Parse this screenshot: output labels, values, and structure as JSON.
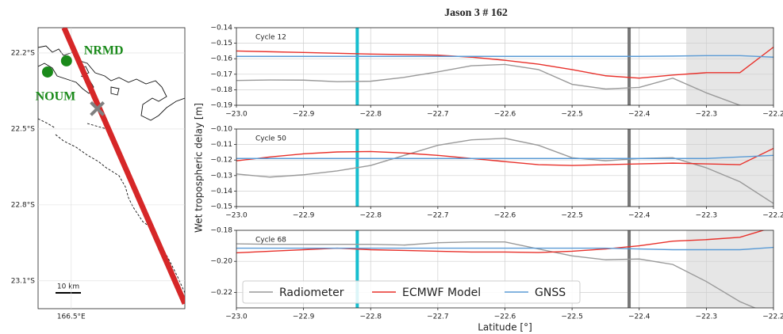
{
  "title": "Jason 3 # 162",
  "map": {
    "type": "map",
    "xlim": [
      166.36,
      166.98
    ],
    "ylim": [
      -23.21,
      -22.1
    ],
    "yticks": [
      {
        "value": -22.2,
        "label": "22.2°S"
      },
      {
        "value": -22.5,
        "label": "22.5°S"
      },
      {
        "value": -22.8,
        "label": "22.8°S"
      },
      {
        "value": -23.1,
        "label": "23.1°S"
      }
    ],
    "xticks": [
      {
        "value": 166.5,
        "label": "166.5°E"
      }
    ],
    "track": {
      "lon": [
        166.47,
        166.98
      ],
      "lat": [
        -22.1,
        -23.19
      ],
      "color": "#d62728"
    },
    "stations": [
      {
        "label": "NRMD",
        "lon": 166.48,
        "lat": -22.231,
        "color": "#1a8a1a"
      },
      {
        "label": "NOUM",
        "lon": 166.4,
        "lat": -22.275,
        "color": "#1a8a1a"
      }
    ],
    "crossing": {
      "lon": 166.61,
      "lat": -22.42,
      "color": "#808080"
    },
    "scale_label": "10 km"
  },
  "chart_data": [
    {
      "type": "line",
      "title": "Cycle 12",
      "x": [
        -23.0,
        -22.95,
        -22.9,
        -22.85,
        -22.8,
        -22.75,
        -22.7,
        -22.65,
        -22.6,
        -22.55,
        -22.5,
        -22.45,
        -22.4,
        -22.35,
        -22.3,
        -22.25,
        -22.2
      ],
      "series": [
        {
          "color": "#999999",
          "values": [
            -0.174,
            -0.1737,
            -0.1738,
            -0.1748,
            -0.1745,
            -0.172,
            -0.1685,
            -0.1645,
            -0.1637,
            -0.167,
            -0.1765,
            -0.1795,
            -0.1785,
            -0.1725,
            -0.182,
            -0.19,
            -0.198
          ]
        },
        {
          "color": "#e8302a",
          "values": [
            -0.155,
            -0.1555,
            -0.156,
            -0.1565,
            -0.157,
            -0.1573,
            -0.1577,
            -0.159,
            -0.161,
            -0.1635,
            -0.167,
            -0.171,
            -0.1725,
            -0.1705,
            -0.169,
            -0.169,
            -0.1525
          ]
        },
        {
          "color": "#5b9bd5",
          "values": [
            -0.1585,
            -0.1585,
            -0.1585,
            -0.1585,
            -0.1585,
            -0.1585,
            -0.1585,
            -0.1585,
            -0.1585,
            -0.1585,
            -0.1585,
            -0.1585,
            -0.1585,
            -0.1583,
            -0.158,
            -0.158,
            -0.159
          ]
        }
      ],
      "xlim": [
        -23.0,
        -22.2
      ],
      "ylim": [
        -0.19,
        -0.14
      ],
      "xticks": [
        {
          "value": -23.0,
          "label": "−23.0"
        },
        {
          "value": -22.9,
          "label": "−22.9"
        },
        {
          "value": -22.8,
          "label": "−22.8"
        },
        {
          "value": -22.7,
          "label": "−22.7"
        },
        {
          "value": -22.6,
          "label": "−22.6"
        },
        {
          "value": -22.5,
          "label": "−22.5"
        },
        {
          "value": -22.4,
          "label": "−22.4"
        },
        {
          "value": -22.3,
          "label": "−22.3"
        },
        {
          "value": -22.2,
          "label": "−22.2"
        }
      ],
      "yticks": [
        {
          "value": -0.14,
          "label": "−0.14"
        },
        {
          "value": -0.15,
          "label": "−0.15"
        },
        {
          "value": -0.16,
          "label": "−0.16"
        },
        {
          "value": -0.17,
          "label": "−0.17"
        },
        {
          "value": -0.18,
          "label": "−0.18"
        },
        {
          "value": -0.19,
          "label": "−0.19"
        }
      ],
      "vlines": [
        {
          "x": -22.82,
          "color": "#17becf"
        },
        {
          "x": -22.415,
          "color": "#777777"
        }
      ],
      "shade": [
        -22.33,
        -22.2
      ],
      "grid": true
    },
    {
      "type": "line",
      "title": "Cycle 50",
      "y_label": "Wet tropospheric delay [m]",
      "x": [
        -23.0,
        -22.95,
        -22.9,
        -22.85,
        -22.8,
        -22.75,
        -22.7,
        -22.65,
        -22.6,
        -22.55,
        -22.5,
        -22.45,
        -22.4,
        -22.35,
        -22.3,
        -22.25,
        -22.2
      ],
      "series": [
        {
          "color": "#999999",
          "values": [
            -0.129,
            -0.131,
            -0.1295,
            -0.127,
            -0.1235,
            -0.117,
            -0.1105,
            -0.107,
            -0.106,
            -0.1105,
            -0.1185,
            -0.1205,
            -0.119,
            -0.1185,
            -0.125,
            -0.134,
            -0.148
          ]
        },
        {
          "color": "#e8302a",
          "values": [
            -0.1205,
            -0.118,
            -0.116,
            -0.1148,
            -0.1145,
            -0.1155,
            -0.117,
            -0.119,
            -0.121,
            -0.123,
            -0.1235,
            -0.123,
            -0.1225,
            -0.122,
            -0.1225,
            -0.123,
            -0.1125
          ]
        },
        {
          "color": "#5b9bd5",
          "values": [
            -0.119,
            -0.119,
            -0.119,
            -0.119,
            -0.119,
            -0.119,
            -0.119,
            -0.119,
            -0.119,
            -0.119,
            -0.119,
            -0.119,
            -0.119,
            -0.119,
            -0.119,
            -0.118,
            -0.117
          ]
        }
      ],
      "xlim": [
        -23.0,
        -22.2
      ],
      "ylim": [
        -0.15,
        -0.1
      ],
      "xticks": [
        {
          "value": -23.0,
          "label": "−23.0"
        },
        {
          "value": -22.9,
          "label": "−22.9"
        },
        {
          "value": -22.8,
          "label": "−22.8"
        },
        {
          "value": -22.7,
          "label": "−22.7"
        },
        {
          "value": -22.6,
          "label": "−22.6"
        },
        {
          "value": -22.5,
          "label": "−22.5"
        },
        {
          "value": -22.4,
          "label": "−22.4"
        },
        {
          "value": -22.3,
          "label": "−22.3"
        },
        {
          "value": -22.2,
          "label": "−22.2"
        }
      ],
      "yticks": [
        {
          "value": -0.1,
          "label": "−0.10"
        },
        {
          "value": -0.11,
          "label": "−0.11"
        },
        {
          "value": -0.12,
          "label": "−0.12"
        },
        {
          "value": -0.13,
          "label": "−0.13"
        },
        {
          "value": -0.14,
          "label": "−0.14"
        },
        {
          "value": -0.15,
          "label": "−0.15"
        }
      ],
      "vlines": [
        {
          "x": -22.82,
          "color": "#17becf"
        },
        {
          "x": -22.415,
          "color": "#777777"
        }
      ],
      "shade": [
        -22.33,
        -22.2
      ],
      "grid": true
    },
    {
      "type": "line",
      "title": "Cycle 68",
      "x_label": "Latitude [°]",
      "legend": "lower left",
      "x": [
        -23.0,
        -22.95,
        -22.9,
        -22.85,
        -22.8,
        -22.75,
        -22.7,
        -22.65,
        -22.6,
        -22.55,
        -22.5,
        -22.45,
        -22.4,
        -22.35,
        -22.3,
        -22.25,
        -22.2
      ],
      "series": [
        {
          "name": "Radiometer",
          "color": "#999999",
          "values": [
            -0.1887,
            -0.189,
            -0.189,
            -0.189,
            -0.189,
            -0.1895,
            -0.188,
            -0.1875,
            -0.1875,
            -0.192,
            -0.1965,
            -0.199,
            -0.1985,
            -0.202,
            -0.213,
            -0.226,
            -0.235
          ]
        },
        {
          "name": "ECMWF Model",
          "color": "#e8302a",
          "values": [
            -0.1945,
            -0.1935,
            -0.1925,
            -0.1915,
            -0.1925,
            -0.193,
            -0.1935,
            -0.194,
            -0.194,
            -0.1943,
            -0.1935,
            -0.192,
            -0.19,
            -0.187,
            -0.186,
            -0.1845,
            -0.178
          ]
        },
        {
          "name": "GNSS",
          "color": "#5b9bd5",
          "values": [
            -0.1915,
            -0.1915,
            -0.1915,
            -0.1915,
            -0.1915,
            -0.1915,
            -0.1915,
            -0.1915,
            -0.1915,
            -0.1915,
            -0.1915,
            -0.1915,
            -0.192,
            -0.1925,
            -0.1925,
            -0.1925,
            -0.191
          ]
        }
      ],
      "xlim": [
        -23.0,
        -22.2
      ],
      "ylim": [
        -0.23,
        -0.18
      ],
      "xticks": [
        {
          "value": -23.0,
          "label": "−23.0"
        },
        {
          "value": -22.9,
          "label": "−22.9"
        },
        {
          "value": -22.8,
          "label": "−22.8"
        },
        {
          "value": -22.7,
          "label": "−22.7"
        },
        {
          "value": -22.6,
          "label": "−22.6"
        },
        {
          "value": -22.5,
          "label": "−22.5"
        },
        {
          "value": -22.4,
          "label": "−22.4"
        },
        {
          "value": -22.3,
          "label": "−22.3"
        },
        {
          "value": -22.2,
          "label": "−22.2"
        }
      ],
      "yticks": [
        {
          "value": -0.18,
          "label": "−0.18"
        },
        {
          "value": -0.2,
          "label": "−0.20"
        },
        {
          "value": -0.22,
          "label": "−0.22"
        }
      ],
      "vlines": [
        {
          "x": -22.82,
          "color": "#17becf"
        },
        {
          "x": -22.415,
          "color": "#777777"
        }
      ],
      "shade": [
        -22.33,
        -22.2
      ],
      "grid": true
    }
  ]
}
